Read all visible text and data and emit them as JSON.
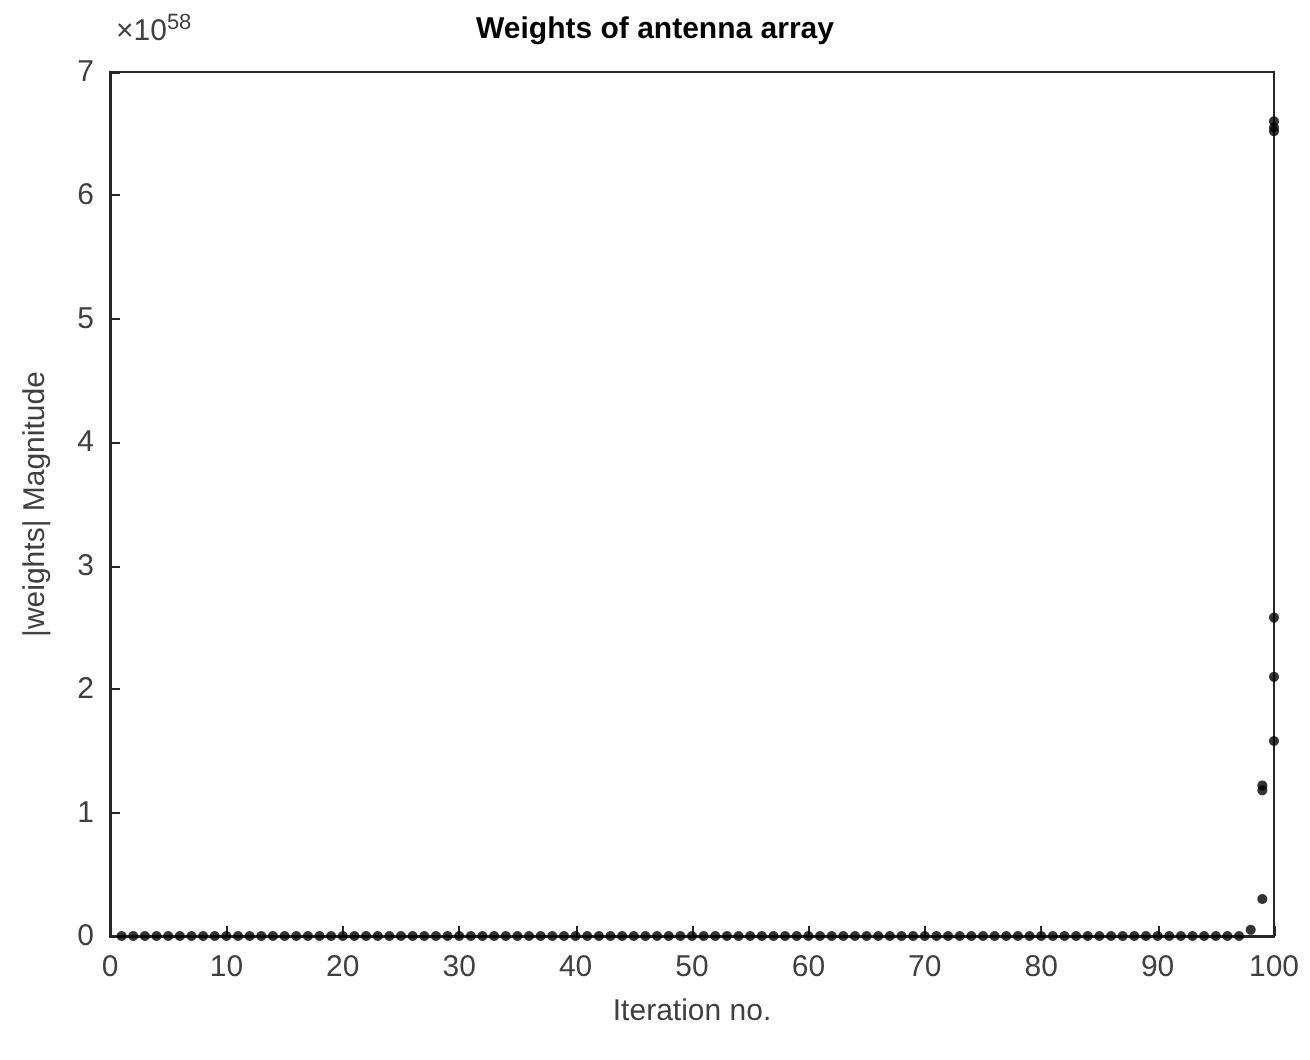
{
  "chart_data": {
    "type": "scatter",
    "title": "Weights of antenna array",
    "xlabel": "Iteration no.",
    "ylabel": "|weights| Magnitude",
    "annotations": [
      "×10$^{58}$"
    ],
    "series": [
      {
        "color": "#000000",
        "x": [
          1,
          2,
          3,
          4,
          5,
          6,
          7,
          8,
          9,
          10,
          11,
          12,
          13,
          14,
          15,
          16,
          17,
          18,
          19,
          20,
          21,
          22,
          23,
          24,
          25,
          26,
          27,
          28,
          29,
          30,
          31,
          32,
          33,
          34,
          35,
          36,
          37,
          38,
          39,
          40,
          41,
          42,
          43,
          44,
          45,
          46,
          47,
          48,
          49,
          50,
          51,
          52,
          53,
          54,
          55,
          56,
          57,
          58,
          59,
          60,
          61,
          62,
          63,
          64,
          65,
          66,
          67,
          68,
          69,
          70,
          71,
          72,
          73,
          74,
          75,
          76,
          77,
          78,
          79,
          80,
          81,
          82,
          83,
          84,
          85,
          86,
          87,
          88,
          89,
          90,
          91,
          92,
          93,
          94,
          95,
          96,
          97,
          98,
          99,
          99,
          99,
          100,
          100,
          100,
          100,
          100,
          100
        ],
        "values": [
          0,
          0,
          0,
          0,
          0,
          0,
          0,
          0,
          0,
          0,
          0,
          0,
          0,
          0,
          0,
          0,
          0,
          0,
          0,
          0,
          0,
          0,
          0,
          0,
          0,
          0,
          0,
          0,
          0,
          0,
          0,
          0,
          0,
          0,
          0,
          0,
          0,
          0,
          0,
          0,
          0,
          0,
          0,
          0,
          0,
          0,
          0,
          0,
          0,
          0,
          0,
          0,
          0,
          0,
          0,
          0,
          0,
          0,
          0,
          0,
          0,
          0,
          0,
          0,
          0,
          0,
          0,
          0,
          0,
          0,
          0,
          0,
          0,
          0,
          0,
          0,
          0,
          0,
          0,
          0,
          0,
          0,
          0,
          0,
          0,
          0,
          0,
          0,
          0,
          0,
          0,
          0,
          0,
          0,
          0,
          0,
          0,
          0.05,
          0.3,
          1.18,
          1.22,
          6.6,
          6.55,
          6.52,
          2.58,
          2.1,
          1.58
        ]
      }
    ],
    "marker": "circle",
    "grid": false,
    "xlim": [
      0,
      100
    ],
    "xticks": [
      0,
      10,
      20,
      30,
      40,
      50,
      60,
      70,
      80,
      90,
      100
    ],
    "ylim": [
      0,
      7
    ],
    "yticks": [
      0,
      1,
      2,
      3,
      4,
      5,
      6,
      7
    ]
  }
}
